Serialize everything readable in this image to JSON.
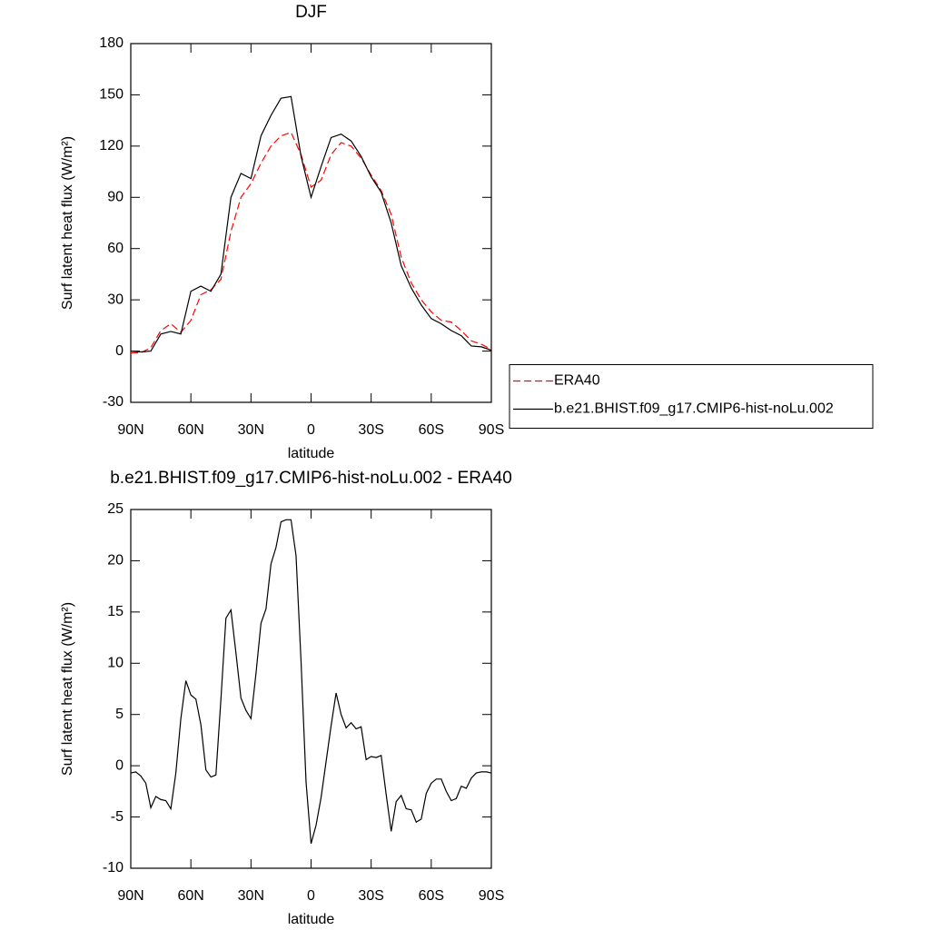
{
  "chart_data": [
    {
      "type": "line",
      "title": "DJF",
      "x_label": "latitude",
      "y_label": "Surf latent heat flux (W/m²)",
      "x": [
        90,
        85,
        80,
        75,
        70,
        65,
        60,
        55,
        50,
        45,
        40,
        35,
        30,
        25,
        20,
        15,
        10,
        5,
        0,
        -5,
        -10,
        -15,
        -20,
        -25,
        -30,
        -35,
        -40,
        -45,
        -50,
        -55,
        -60,
        -65,
        -70,
        -75,
        -80,
        -85,
        -90
      ],
      "series": [
        {
          "name": "ERA40",
          "color": "#ff0000",
          "style": "dashed",
          "values": [
            -1,
            -1,
            2,
            12,
            16,
            11,
            18,
            33,
            36,
            42,
            70,
            90,
            98,
            110,
            120,
            126,
            128,
            115,
            96,
            100,
            115,
            122,
            120,
            113,
            103,
            94,
            80,
            55,
            40,
            30,
            23,
            18,
            17,
            12,
            6,
            4,
            1
          ]
        },
        {
          "name": "b.e21.BHIST.f09_g17.CMIP6-hist-noLu.002",
          "color": "#000000",
          "style": "solid",
          "values": [
            0,
            -0.5,
            0,
            10,
            11.5,
            10,
            35,
            38,
            35,
            45,
            90,
            104,
            101,
            126,
            138,
            148,
            149,
            114,
            90,
            108,
            125,
            127,
            123,
            114,
            102,
            93,
            75,
            50,
            37,
            27,
            19,
            16,
            12,
            9,
            3,
            2.5,
            0.5
          ]
        }
      ],
      "xlim": [
        90,
        -90
      ],
      "xticks": [
        {
          "value": 90,
          "label": "90N"
        },
        {
          "value": 60,
          "label": "60N"
        },
        {
          "value": 30,
          "label": "30N"
        },
        0,
        {
          "value": -30,
          "label": "30S"
        },
        {
          "value": -60,
          "label": "60S"
        },
        {
          "value": -90,
          "label": "90S"
        }
      ],
      "ylim": [
        -30,
        180
      ],
      "yticks": [
        -30,
        0,
        30,
        60,
        90,
        120,
        150,
        180
      ],
      "legend": "right"
    },
    {
      "type": "line",
      "title": "b.e21.BHIST.f09_g17.CMIP6-hist-noLu.002 - ERA40",
      "x_label": "latitude",
      "y_label": "Surf latent heat flux (W/m²)",
      "x": [
        90,
        87.5,
        85,
        82.5,
        80,
        77.5,
        75,
        72.5,
        70,
        67.5,
        65,
        62.5,
        60,
        57.5,
        55,
        52.5,
        50,
        47.5,
        45,
        42.5,
        40,
        37.5,
        35,
        32.5,
        30,
        27.5,
        25,
        22.5,
        20,
        17.5,
        15,
        12.5,
        10,
        7.5,
        5,
        2.5,
        0,
        -2.5,
        -5,
        -7.5,
        -10,
        -12.5,
        -15,
        -17.5,
        -20,
        -22.5,
        -25,
        -27.5,
        -30,
        -32.5,
        -35,
        -37.5,
        -40,
        -42.5,
        -45,
        -47.5,
        -50,
        -52.5,
        -55,
        -57.5,
        -60,
        -62.5,
        -65,
        -67.5,
        -70,
        -72.5,
        -75,
        -77.5,
        -80,
        -82.5,
        -85,
        -87.5,
        -90
      ],
      "series": [
        {
          "color": "#000000",
          "style": "solid",
          "values": [
            -0.7,
            -0.6,
            -1.0,
            -1.7,
            -4.1,
            -3,
            -3.3,
            -3.4,
            -4.2,
            -0.7,
            4.6,
            8.3,
            6.9,
            6.5,
            4,
            -0.4,
            -1.1,
            -0.9,
            6.5,
            14.4,
            15.2,
            11,
            6.6,
            5.4,
            4.6,
            9,
            13.9,
            15.3,
            19.7,
            21.3,
            23.8,
            24,
            24,
            20.5,
            10.2,
            -1.6,
            -7.6,
            -5.8,
            -3.1,
            0.4,
            3.9,
            7.1,
            5,
            3.7,
            4.2,
            3.6,
            3.8,
            0.6,
            0.9,
            0.8,
            1,
            -2.8,
            -6.4,
            -3.5,
            -2.9,
            -4.2,
            -4.3,
            -5.5,
            -5.2,
            -2.7,
            -1.7,
            -1.3,
            -1.3,
            -2.5,
            -3.4,
            -3.2,
            -2,
            -2.2,
            -1.2,
            -0.7,
            -0.6,
            -0.6,
            -0.7
          ]
        }
      ],
      "xlim": [
        90,
        -90
      ],
      "xticks": [
        {
          "value": 90,
          "label": "90N"
        },
        {
          "value": 60,
          "label": "60N"
        },
        {
          "value": 30,
          "label": "30N"
        },
        0,
        {
          "value": -30,
          "label": "30S"
        },
        {
          "value": -60,
          "label": "60S"
        },
        {
          "value": -90,
          "label": "90S"
        }
      ],
      "ylim": [
        -10,
        25
      ],
      "yticks": [
        -10,
        -5,
        0,
        5,
        10,
        15,
        20,
        25
      ]
    }
  ]
}
